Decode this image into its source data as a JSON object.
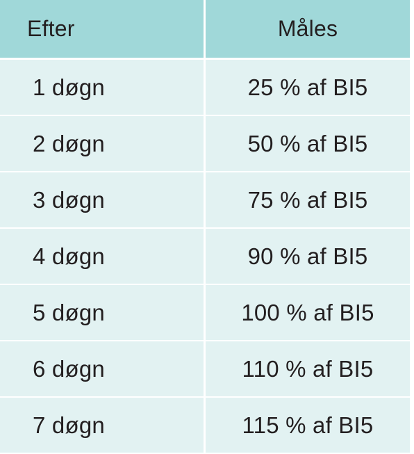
{
  "table": {
    "headers": {
      "col1": "Efter",
      "col2": "Måles"
    },
    "rows": [
      {
        "after": "1 døgn",
        "measure": "25 % af BI5"
      },
      {
        "after": "2 døgn",
        "measure": "50 % af BI5"
      },
      {
        "after": "3 døgn",
        "measure": "75 % af BI5"
      },
      {
        "after": "4 døgn",
        "measure": "90 % af BI5"
      },
      {
        "after": "5 døgn",
        "measure": "100 % af BI5"
      },
      {
        "after": "6 døgn",
        "measure": "110 % af BI5"
      },
      {
        "after": "7 døgn",
        "measure": "115 % af BI5"
      }
    ],
    "colors": {
      "header_bg": "#a0d8d9",
      "row_bg": "#e2f2f2",
      "text": "#231f20"
    }
  }
}
